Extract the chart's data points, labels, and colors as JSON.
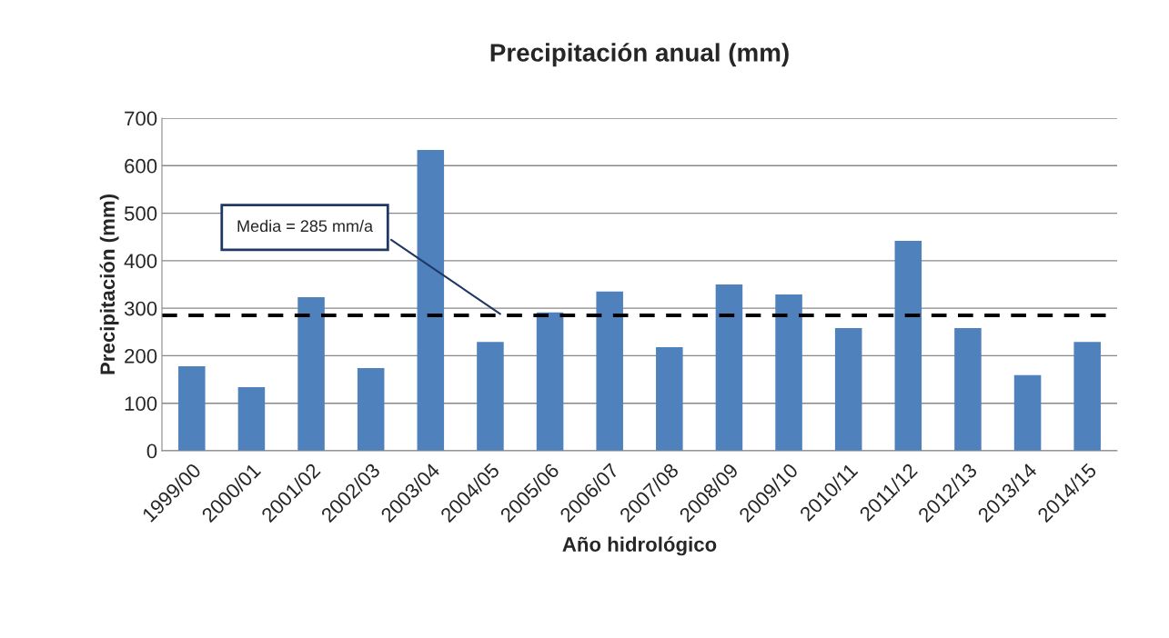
{
  "chart_data": {
    "type": "bar",
    "title": "Precipitación anual (mm)",
    "xlabel": "Año hidrológico",
    "ylabel": "Precipitación (mm)",
    "categories": [
      "1999/00",
      "2000/01",
      "2001/02",
      "2002/03",
      "2003/04",
      "2004/05",
      "2005/06",
      "2006/07",
      "2007/08",
      "2008/09",
      "2009/10",
      "2010/11",
      "2011/12",
      "2012/13",
      "2013/14",
      "2014/15"
    ],
    "values": [
      178,
      134,
      323,
      174,
      633,
      229,
      291,
      335,
      218,
      350,
      329,
      258,
      442,
      258,
      159,
      229
    ],
    "color": "#4f81bd",
    "ylim": [
      0,
      700
    ],
    "yticks": [
      0,
      100,
      200,
      300,
      400,
      500,
      600,
      700
    ],
    "grid": "y",
    "ref_lines": [
      {
        "axis": "y",
        "value": 285,
        "label": "Media = 285 mm/a",
        "color": "#000000",
        "line_style": "dashed"
      }
    ]
  }
}
